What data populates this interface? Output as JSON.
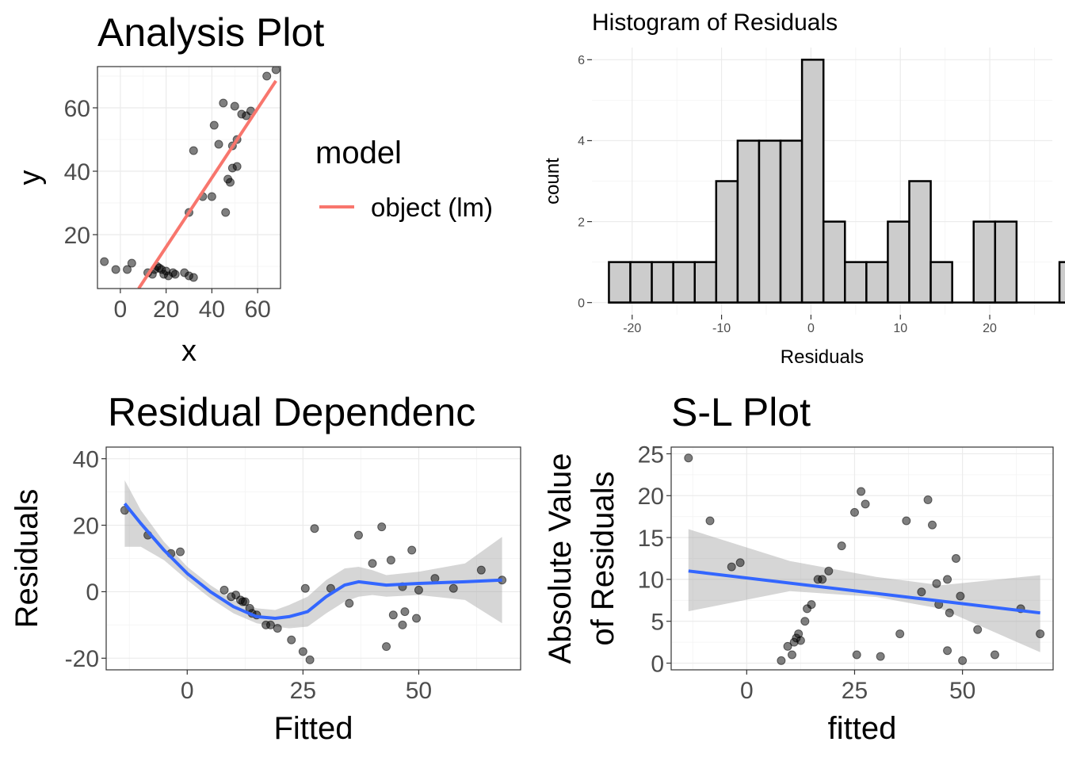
{
  "chart_data": [
    {
      "type": "scatter",
      "title": "Analysis Plot",
      "xlabel": "x",
      "ylabel": "y",
      "xlim": [
        -10,
        70
      ],
      "ylim": [
        3,
        73
      ],
      "xticks": [
        0,
        20,
        40,
        60
      ],
      "yticks": [
        20,
        40,
        60
      ],
      "grid": true,
      "legend": {
        "title": "model",
        "position": "right",
        "entries": [
          {
            "label": "object (lm)",
            "color": "#F8766D"
          }
        ]
      },
      "points": [
        [
          -7,
          11.5
        ],
        [
          -2,
          9
        ],
        [
          3,
          9
        ],
        [
          5,
          11
        ],
        [
          12,
          8
        ],
        [
          14,
          7.5
        ],
        [
          15,
          9
        ],
        [
          16,
          10
        ],
        [
          17,
          9.5
        ],
        [
          18,
          9
        ],
        [
          19,
          7.5
        ],
        [
          20,
          8.5
        ],
        [
          21,
          7
        ],
        [
          23,
          8
        ],
        [
          24,
          7.5
        ],
        [
          28,
          8
        ],
        [
          30,
          7
        ],
        [
          32,
          6.5
        ],
        [
          30,
          27
        ],
        [
          32,
          46.5
        ],
        [
          36,
          32
        ],
        [
          40,
          32
        ],
        [
          41,
          54.5
        ],
        [
          43,
          48.5
        ],
        [
          45,
          61.5
        ],
        [
          46,
          27
        ],
        [
          47,
          37.5
        ],
        [
          48,
          36.5
        ],
        [
          49,
          41
        ],
        [
          49,
          48
        ],
        [
          50,
          60.5
        ],
        [
          51,
          41.5
        ],
        [
          51,
          50
        ],
        [
          53,
          58
        ],
        [
          55,
          57.5
        ],
        [
          57,
          59
        ],
        [
          64,
          70
        ],
        [
          68,
          72
        ]
      ],
      "fit_line": {
        "x": [
          8,
          68
        ],
        "y": [
          3,
          68.5
        ]
      }
    },
    {
      "type": "bar",
      "title": "Histogram of Residuals",
      "xlabel": "Residuals",
      "ylabel": "count",
      "xlim": [
        -24.5,
        27
      ],
      "ylim": [
        -0.3,
        6.3
      ],
      "xticks": [
        -20,
        -10,
        0,
        10,
        20
      ],
      "yticks": [
        0,
        2,
        4,
        6
      ],
      "grid": true,
      "bin_width": 2.4,
      "bin_start": -22.6,
      "counts": [
        1,
        1,
        1,
        1,
        1,
        3,
        4,
        4,
        4,
        6,
        2,
        1,
        1,
        2,
        3,
        1,
        0,
        2,
        2,
        0,
        0,
        1
      ]
    },
    {
      "type": "scatter",
      "title": "Residual Dependenc",
      "xlabel": "Fitted",
      "ylabel": "Residuals",
      "xlim": [
        -17.5,
        72
      ],
      "ylim": [
        -23.5,
        43.5
      ],
      "xticks": [
        0,
        25,
        50
      ],
      "yticks": [
        -20,
        0,
        20,
        40
      ],
      "grid": true,
      "points": [
        [
          -13.5,
          24.5
        ],
        [
          -8.5,
          17
        ],
        [
          -3.5,
          11.5
        ],
        [
          -1.5,
          12
        ],
        [
          8,
          0.5
        ],
        [
          9.5,
          -1.5
        ],
        [
          10.5,
          -1
        ],
        [
          11.5,
          -2.5
        ],
        [
          12,
          -3
        ],
        [
          12.5,
          -3
        ],
        [
          13.5,
          -5
        ],
        [
          14,
          -6.5
        ],
        [
          15,
          -7
        ],
        [
          17,
          -10
        ],
        [
          18,
          -10
        ],
        [
          19.5,
          -11
        ],
        [
          22.5,
          -14.5
        ],
        [
          25,
          -18
        ],
        [
          25.5,
          1
        ],
        [
          26.5,
          -20.5
        ],
        [
          27.5,
          19
        ],
        [
          31,
          1
        ],
        [
          35,
          -3.5
        ],
        [
          37,
          17
        ],
        [
          40,
          8.5
        ],
        [
          42,
          19.5
        ],
        [
          43,
          -16.5
        ],
        [
          44,
          9.5
        ],
        [
          44.5,
          -7
        ],
        [
          46.5,
          -10
        ],
        [
          46.5,
          1.5
        ],
        [
          47,
          -6
        ],
        [
          48.5,
          12.5
        ],
        [
          49.5,
          -8
        ],
        [
          50,
          0.5
        ],
        [
          53.5,
          4
        ],
        [
          57.5,
          1
        ],
        [
          63.5,
          6.5
        ],
        [
          68,
          3.5
        ]
      ],
      "smooth_line": {
        "x": [
          -13.5,
          -10,
          -5,
          0,
          5,
          10,
          15,
          19,
          22,
          26,
          30,
          34,
          37,
          40,
          43,
          50,
          60,
          68
        ],
        "y": [
          26.5,
          20.5,
          12.5,
          5.5,
          0,
          -4.5,
          -7.5,
          -8,
          -7.5,
          -6,
          -1.5,
          2,
          3,
          2.5,
          2,
          2.5,
          3,
          3.5
        ]
      },
      "band_upper": [
        33.5,
        24.5,
        15,
        7.5,
        2,
        -2.5,
        -5,
        -5.5,
        -4,
        -1.5,
        3.5,
        7,
        7.5,
        6.5,
        5,
        6,
        8.5,
        16.5
      ],
      "band_lower": [
        13.5,
        13.5,
        9.5,
        3.5,
        -2,
        -6.5,
        -9.5,
        -10.5,
        -11,
        -10.5,
        -6.5,
        -3,
        -1.5,
        -1,
        -1.5,
        -1,
        -2.5,
        -9.5
      ]
    },
    {
      "type": "scatter",
      "title": "S-L Plot",
      "xlabel": "fitted",
      "ylabel": "Absolute Value\nof Residuals",
      "xlim": [
        -17.5,
        71
      ],
      "ylim": [
        -0.8,
        25.8
      ],
      "xticks": [
        0,
        25,
        50
      ],
      "yticks": [
        0,
        5,
        10,
        15,
        20,
        25
      ],
      "grid": true,
      "points": [
        [
          -13.5,
          24.5
        ],
        [
          -8.5,
          17
        ],
        [
          -3.5,
          11.5
        ],
        [
          -1.5,
          12
        ],
        [
          8,
          0.3
        ],
        [
          9.5,
          2
        ],
        [
          10.5,
          1
        ],
        [
          11,
          2.5
        ],
        [
          11.5,
          3
        ],
        [
          12,
          3.5
        ],
        [
          12.5,
          2.7
        ],
        [
          13.5,
          5
        ],
        [
          14,
          6.5
        ],
        [
          15,
          7
        ],
        [
          16.5,
          10
        ],
        [
          17.5,
          10
        ],
        [
          19,
          11
        ],
        [
          22,
          14
        ],
        [
          25,
          18
        ],
        [
          25.5,
          1
        ],
        [
          26.5,
          20.5
        ],
        [
          27.5,
          19
        ],
        [
          31,
          0.8
        ],
        [
          35.5,
          3.5
        ],
        [
          37,
          17
        ],
        [
          40.5,
          8.5
        ],
        [
          42,
          19.5
        ],
        [
          43,
          16.5
        ],
        [
          44,
          9.5
        ],
        [
          44.5,
          7
        ],
        [
          46.5,
          10
        ],
        [
          46.5,
          1.5
        ],
        [
          47,
          6
        ],
        [
          48.5,
          12.5
        ],
        [
          49.5,
          8
        ],
        [
          50,
          0.3
        ],
        [
          53.5,
          4
        ],
        [
          57.5,
          1
        ],
        [
          63.5,
          6.5
        ],
        [
          68,
          3.5
        ]
      ],
      "fit_line": {
        "x": [
          -13.5,
          68
        ],
        "y": [
          11,
          6
        ]
      },
      "band_upper": {
        "x": [
          -13.5,
          10,
          30,
          45,
          68
        ],
        "y": [
          16,
          12.2,
          10.3,
          9.3,
          10.5
        ]
      },
      "band_lower": {
        "x": [
          -13.5,
          10,
          30,
          45,
          68
        ],
        "y": [
          6.2,
          8.6,
          7.9,
          6.5,
          1.3
        ]
      }
    }
  ]
}
